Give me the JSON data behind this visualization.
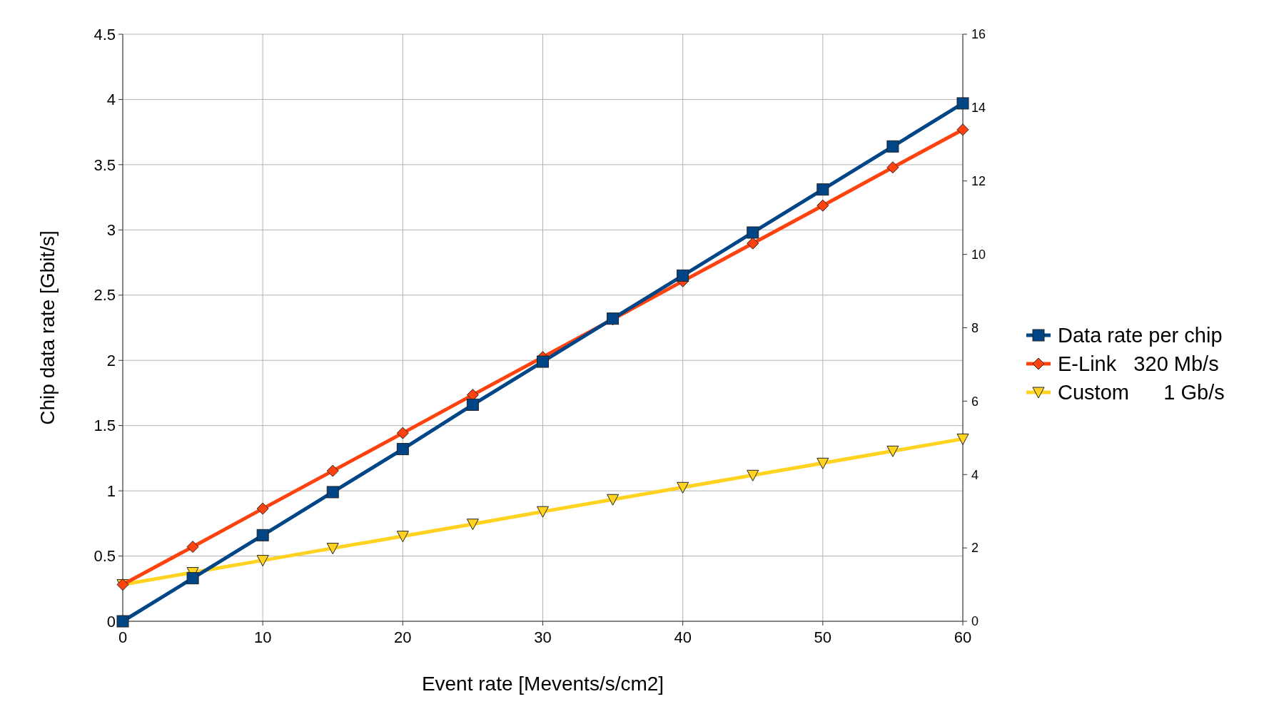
{
  "chart_data": {
    "type": "line",
    "xlabel": "Event rate [Mevents/s/cm2]",
    "ylabel": "Chip data rate [Gbit/s]",
    "x": [
      0,
      5,
      10,
      15,
      20,
      25,
      30,
      35,
      40,
      45,
      50,
      55,
      60
    ],
    "xlim": [
      0,
      60
    ],
    "xticks": [
      0,
      10,
      20,
      30,
      40,
      50,
      60
    ],
    "ylim": [
      0,
      4.5
    ],
    "yticks": [
      0,
      0.5,
      1,
      1.5,
      2,
      2.5,
      3,
      3.5,
      4,
      4.5
    ],
    "y2lim": [
      0,
      16
    ],
    "y2ticks": [
      0,
      2,
      4,
      6,
      8,
      10,
      12,
      14,
      16
    ],
    "grid": true,
    "legend": "right",
    "line_style": "solid",
    "series": [
      {
        "name": "Data rate per chip",
        "color": "#004586",
        "marker": "square",
        "values": [
          0,
          0.33,
          0.66,
          0.99,
          1.32,
          1.66,
          1.99,
          2.32,
          2.65,
          2.98,
          3.31,
          3.64,
          3.97
        ]
      },
      {
        "name": "E-Link   320 Mb/s",
        "color": "#ff420e",
        "marker": "diamond",
        "axis": "y2",
        "values": [
          1.0,
          2.03,
          3.07,
          4.1,
          5.13,
          6.17,
          7.2,
          8.23,
          9.27,
          10.3,
          11.33,
          12.37,
          13.4
        ]
      },
      {
        "name": "Custom      1 Gb/s",
        "color": "#ffd320",
        "marker": "triangle",
        "axis": "y2",
        "values": [
          1.0,
          1.33,
          1.66,
          1.99,
          2.32,
          2.65,
          2.99,
          3.32,
          3.65,
          3.98,
          4.31,
          4.64,
          4.97
        ]
      }
    ]
  }
}
